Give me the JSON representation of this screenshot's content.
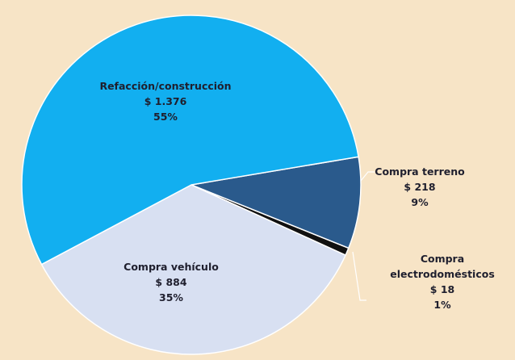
{
  "chart_data": {
    "type": "pie",
    "categories": [
      "Refacción/construcción",
      "Compra terreno",
      "Compra electrodomésticos",
      "Compra vehículo"
    ],
    "values": [
      1376,
      218,
      18,
      884
    ],
    "value_labels": [
      "$ 1.376",
      "$ 218",
      "$ 18",
      "$ 884"
    ],
    "percents": [
      55,
      9,
      1,
      35
    ],
    "percent_labels": [
      "55%",
      "9%",
      "1%",
      "35%"
    ],
    "colors": [
      "#12aff0",
      "#2a5a8c",
      "#111111",
      "#d8e0f2"
    ]
  }
}
